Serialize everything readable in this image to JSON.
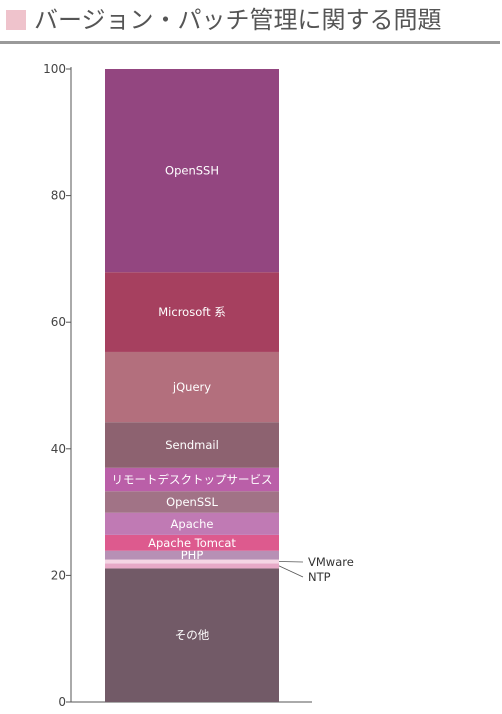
{
  "header": {
    "title": "バージョン・パッチ管理に関する問題",
    "marker_color": "#efc3cc"
  },
  "chart_data": {
    "type": "bar",
    "stacked": true,
    "title": "バージョン・パッチ管理に関する問題",
    "xlabel": "",
    "ylabel": "",
    "ylim": [
      0,
      100
    ],
    "yticks": [
      0,
      20,
      40,
      60,
      80,
      100
    ],
    "grid": false,
    "series": [
      {
        "name": "その他",
        "value": 21.1,
        "color": "#725a67",
        "label_position": "inside"
      },
      {
        "name": "NTP",
        "value": 0.8,
        "color": "#e7a9c7",
        "label_position": "callout"
      },
      {
        "name": "VMware",
        "value": 0.6,
        "color": "#f5d5e4",
        "label_position": "callout"
      },
      {
        "name": "PHP",
        "value": 1.4,
        "color": "#b790b5",
        "label_position": "inside"
      },
      {
        "name": "Apache Tomcat",
        "value": 2.5,
        "color": "#dd5a8e",
        "label_position": "inside"
      },
      {
        "name": "Apache",
        "value": 3.5,
        "color": "#c07ab4",
        "label_position": "inside"
      },
      {
        "name": "OpenSSL",
        "value": 3.4,
        "color": "#a17386",
        "label_position": "inside"
      },
      {
        "name": "リモートデスクトップサービス",
        "value": 3.7,
        "color": "#ba5fa8",
        "label_position": "inside"
      },
      {
        "name": "Sendmail",
        "value": 7.2,
        "color": "#8d6270",
        "label_position": "inside"
      },
      {
        "name": "jQuery",
        "value": 11.1,
        "color": "#b36f7d",
        "label_position": "inside"
      },
      {
        "name": "Microsoft 系",
        "value": 12.6,
        "color": "#a6405f",
        "label_position": "inside"
      },
      {
        "name": "OpenSSH",
        "value": 32.1,
        "color": "#934680",
        "label_position": "inside"
      }
    ]
  }
}
